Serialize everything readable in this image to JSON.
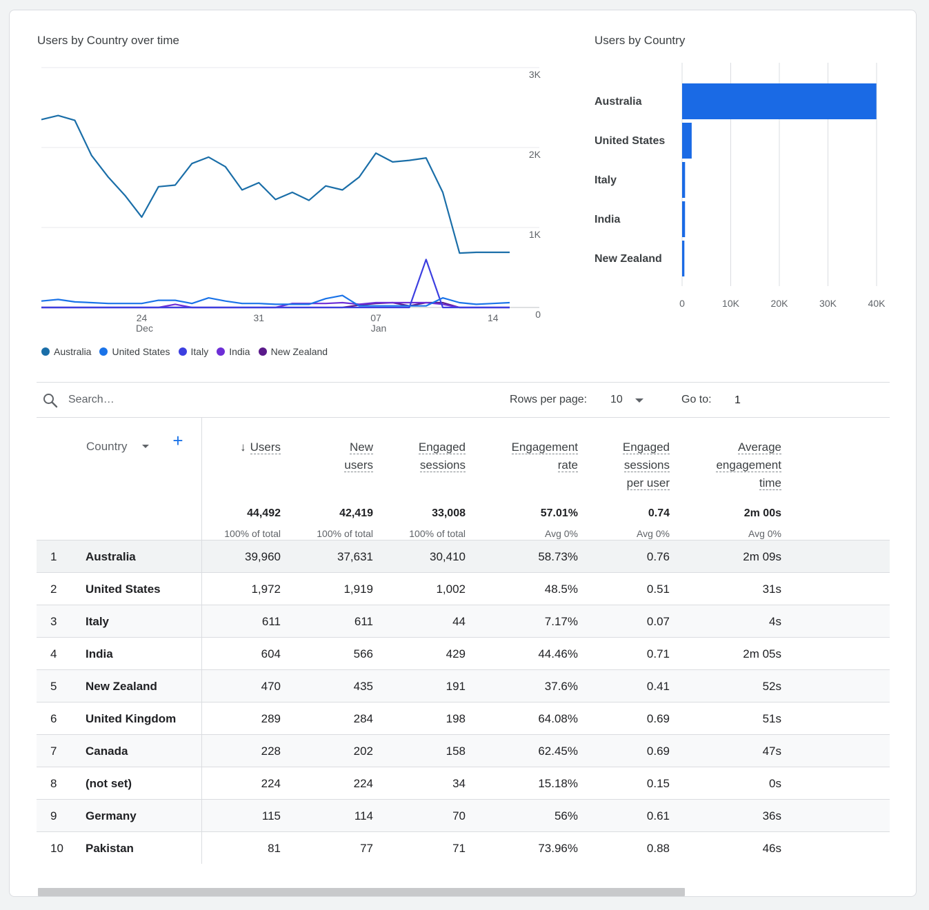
{
  "line_chart": {
    "title": "Users by Country over time",
    "y_ticks": [
      "3K",
      "2K",
      "1K",
      "0"
    ],
    "x_ticks": [
      {
        "day": "24",
        "month": "Dec"
      },
      {
        "day": "31",
        "month": ""
      },
      {
        "day": "07",
        "month": "Jan"
      },
      {
        "day": "14",
        "month": ""
      }
    ],
    "legend": [
      {
        "name": "Australia",
        "color": "#1a6ea8"
      },
      {
        "name": "United States",
        "color": "#1a73e8"
      },
      {
        "name": "Italy",
        "color": "#3c3fe0"
      },
      {
        "name": "India",
        "color": "#6d2ed6"
      },
      {
        "name": "New Zealand",
        "color": "#5a1a8a"
      }
    ]
  },
  "bar_chart": {
    "title": "Users by Country",
    "x_ticks": [
      "0",
      "10K",
      "20K",
      "30K",
      "40K"
    ]
  },
  "chart_data": [
    {
      "type": "line",
      "title": "Users by Country over time",
      "x": [
        "Dec 18",
        "Dec 19",
        "Dec 20",
        "Dec 21",
        "Dec 22",
        "Dec 23",
        "Dec 24",
        "Dec 25",
        "Dec 26",
        "Dec 27",
        "Dec 28",
        "Dec 29",
        "Dec 30",
        "Dec 31",
        "Jan 01",
        "Jan 02",
        "Jan 03",
        "Jan 04",
        "Jan 05",
        "Jan 06",
        "Jan 07",
        "Jan 08",
        "Jan 09",
        "Jan 10",
        "Jan 11",
        "Jan 12",
        "Jan 13",
        "Jan 14",
        "Jan 15"
      ],
      "ylim": [
        0,
        3000
      ],
      "series": [
        {
          "name": "Australia",
          "values": [
            2350,
            2400,
            2340,
            1900,
            1630,
            1400,
            1130,
            1510,
            1530,
            1800,
            1880,
            1760,
            1470,
            1560,
            1350,
            1440,
            1340,
            1520,
            1470,
            1630,
            1930,
            1820,
            1840,
            1870,
            1440,
            680,
            690,
            690,
            690
          ]
        },
        {
          "name": "United States",
          "values": [
            80,
            100,
            70,
            60,
            50,
            50,
            50,
            90,
            90,
            50,
            120,
            80,
            50,
            50,
            40,
            40,
            40,
            110,
            150,
            20,
            20,
            20,
            20,
            20,
            120,
            60,
            40,
            50,
            60
          ]
        },
        {
          "name": "Italy",
          "values": [
            0,
            0,
            0,
            0,
            0,
            0,
            0,
            0,
            0,
            0,
            0,
            0,
            0,
            0,
            0,
            0,
            0,
            0,
            0,
            0,
            0,
            0,
            0,
            600,
            0,
            0,
            0,
            0,
            0
          ]
        },
        {
          "name": "India",
          "values": [
            0,
            0,
            0,
            0,
            0,
            0,
            0,
            0,
            40,
            0,
            0,
            0,
            0,
            0,
            0,
            50,
            50,
            50,
            60,
            40,
            60,
            60,
            60,
            60,
            40,
            0,
            0,
            0,
            0
          ]
        },
        {
          "name": "New Zealand",
          "values": [
            0,
            0,
            0,
            0,
            0,
            0,
            0,
            0,
            0,
            0,
            0,
            0,
            0,
            0,
            0,
            0,
            0,
            0,
            0,
            30,
            50,
            60,
            20,
            60,
            60,
            0,
            0,
            0,
            0
          ]
        }
      ]
    },
    {
      "type": "bar",
      "orientation": "horizontal",
      "title": "Users by Country",
      "categories": [
        "Australia",
        "United States",
        "Italy",
        "India",
        "New Zealand"
      ],
      "values": [
        39960,
        1972,
        611,
        604,
        470
      ],
      "xlim": [
        0,
        40000
      ]
    }
  ],
  "toolbar": {
    "search_placeholder": "Search…",
    "rows_per_page_label": "Rows per page:",
    "rows_per_page_value": "10",
    "goto_label": "Go to:",
    "goto_value": "1"
  },
  "table": {
    "country_header": "Country",
    "add_dimension": "+",
    "columns": [
      {
        "lines": [
          "Users"
        ],
        "sorted": true,
        "arrow": "↓",
        "total": "44,492",
        "sub": "100% of total"
      },
      {
        "lines": [
          "New",
          "users"
        ],
        "total": "42,419",
        "sub": "100% of total"
      },
      {
        "lines": [
          "Engaged",
          "sessions"
        ],
        "total": "33,008",
        "sub": "100% of total"
      },
      {
        "lines": [
          "Engagement",
          "rate"
        ],
        "total": "57.01%",
        "sub": "Avg 0%"
      },
      {
        "lines": [
          "Engaged",
          "sessions",
          "per user"
        ],
        "total": "0.74",
        "sub": "Avg 0%"
      },
      {
        "lines": [
          "Average",
          "engagement",
          "time"
        ],
        "total": "2m 00s",
        "sub": "Avg 0%"
      }
    ],
    "rows": [
      {
        "idx": "1",
        "country": "Australia",
        "values": [
          "39,960",
          "37,631",
          "30,410",
          "58.73%",
          "0.76",
          "2m 09s"
        ]
      },
      {
        "idx": "2",
        "country": "United States",
        "values": [
          "1,972",
          "1,919",
          "1,002",
          "48.5%",
          "0.51",
          "31s"
        ]
      },
      {
        "idx": "3",
        "country": "Italy",
        "values": [
          "611",
          "611",
          "44",
          "7.17%",
          "0.07",
          "4s"
        ]
      },
      {
        "idx": "4",
        "country": "India",
        "values": [
          "604",
          "566",
          "429",
          "44.46%",
          "0.71",
          "2m 05s"
        ]
      },
      {
        "idx": "5",
        "country": "New Zealand",
        "values": [
          "470",
          "435",
          "191",
          "37.6%",
          "0.41",
          "52s"
        ]
      },
      {
        "idx": "6",
        "country": "United Kingdom",
        "values": [
          "289",
          "284",
          "198",
          "64.08%",
          "0.69",
          "51s"
        ]
      },
      {
        "idx": "7",
        "country": "Canada",
        "values": [
          "228",
          "202",
          "158",
          "62.45%",
          "0.69",
          "47s"
        ]
      },
      {
        "idx": "8",
        "country": "(not set)",
        "values": [
          "224",
          "224",
          "34",
          "15.18%",
          "0.15",
          "0s"
        ]
      },
      {
        "idx": "9",
        "country": "Germany",
        "values": [
          "115",
          "114",
          "70",
          "56%",
          "0.61",
          "36s"
        ]
      },
      {
        "idx": "10",
        "country": "Pakistan",
        "values": [
          "81",
          "77",
          "71",
          "73.96%",
          "0.88",
          "46s"
        ]
      }
    ]
  }
}
